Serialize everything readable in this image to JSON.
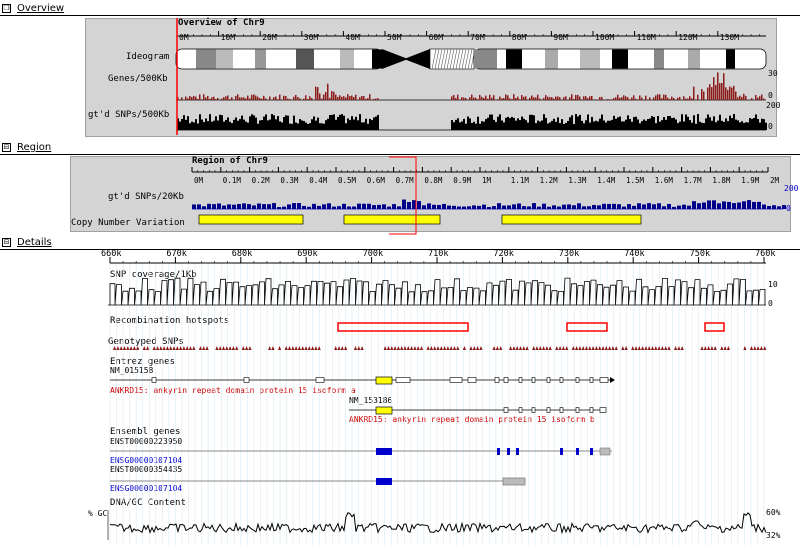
{
  "sections": {
    "overview": {
      "toggle": "❐",
      "label": "Overview"
    },
    "region": {
      "toggle": "⊟",
      "label": "Region"
    },
    "details": {
      "toggle": "⊟",
      "label": "Details"
    }
  },
  "overview": {
    "title": "Overview of Chr9",
    "ticks": [
      "0M",
      "10M",
      "20M",
      "30M",
      "40M",
      "50M",
      "60M",
      "70M",
      "80M",
      "90M",
      "100M",
      "110M",
      "120M",
      "130M"
    ],
    "track_ideogram": "Ideogram",
    "track_genes": "Genes/500Kb",
    "genes_max": "30",
    "genes_min": "0",
    "track_snps": "gt'd SNPs/500Kb",
    "snps_max": "200",
    "snps_min": "0"
  },
  "region": {
    "title": "Region of Chr9",
    "ticks": [
      "0M",
      "0.1M",
      "0.2M",
      "0.3M",
      "0.4M",
      "0.5M",
      "0.6M",
      "0.7M",
      "0.8M",
      "0.9M",
      "1M",
      "1.1M",
      "1.2M",
      "1.3M",
      "1.4M",
      "1.5M",
      "1.6M",
      "1.7M",
      "1.8M",
      "1.9M",
      "2M"
    ],
    "track_snps": "gt'd SNPs/20Kb",
    "snps_max": "200",
    "snps_min": "0",
    "track_cnv": "Copy Number Variation"
  },
  "details": {
    "ticks": [
      "660k",
      "670k",
      "680k",
      "690k",
      "700k",
      "710k",
      "720k",
      "730k",
      "740k",
      "750k",
      "760k"
    ],
    "snp_coverage": "SNP coverage/1Kb",
    "cov_max": "10",
    "cov_min": "0",
    "recomb": "Recombination hotspots",
    "genotyped": "Genotyped SNPs",
    "entrez": "Entrez genes",
    "gene1_id": "NM_015158",
    "gene1_desc": "ANKRD15: ankyrin repeat domain protein 15 isoform a",
    "gene2_id": "NM_153186",
    "gene2_desc": "ANKRD15: ankyrin repeat domain protein 15 isoform b",
    "ensembl": "Ensembl genes",
    "ens1_tx": "ENST00000223950",
    "ens1_gene": "ENSG00000107104",
    "ens2_tx": "ENST00000354435",
    "ens2_gene": "ENSG00000107104",
    "gc_title": "DNA/GC Content",
    "gc_left": "% GC",
    "gc_max": "60%",
    "gc_min": "32%"
  },
  "colors": {
    "panel": "#d4d4d4",
    "genes_bar": "#8b1a1a",
    "region_snp_bar": "#00008b",
    "cnv": "#ffff00",
    "hotspot": "#ff0000",
    "gene_name": "#cc0000",
    "ensembl_id": "#0000cc",
    "ensembl_exon": "#0000cc"
  }
}
